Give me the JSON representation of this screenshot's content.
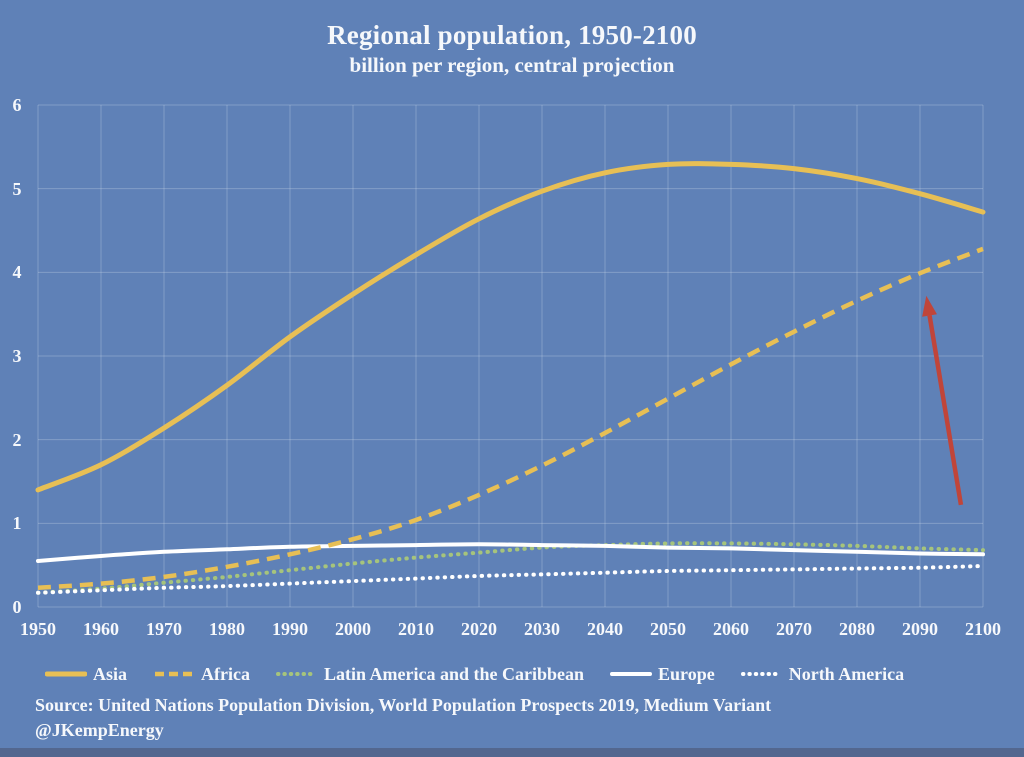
{
  "title": "Regional population, 1950-2100",
  "subtitle": "billion per region, central projection",
  "source": {
    "line1": "Source: United Nations Population Division, World Population Prospects 2019, Medium Variant",
    "line2": "@JKempEnergy"
  },
  "colors": {
    "background": "#5f81b7",
    "bottom_bar": "#53678f",
    "text": "#f6f8fb",
    "gold": "#e7bf55",
    "green": "#a6c47c",
    "white": "#ffffff",
    "arrow_red": "#c0453a",
    "grid": "#cdd9ea"
  },
  "chart_data": {
    "type": "line",
    "title": "Regional population, 1950-2100",
    "subtitle": "billion per region, central projection",
    "xlabel": "",
    "ylabel": "billion per region",
    "x": [
      1950,
      1960,
      1970,
      1980,
      1990,
      2000,
      2010,
      2020,
      2030,
      2040,
      2050,
      2060,
      2070,
      2080,
      2090,
      2100
    ],
    "x_ticks": [
      1950,
      1960,
      1970,
      1980,
      1990,
      2000,
      2010,
      2020,
      2030,
      2040,
      2050,
      2060,
      2070,
      2080,
      2090,
      2100
    ],
    "y_ticks": [
      0,
      1,
      2,
      3,
      4,
      5,
      6
    ],
    "ylim": [
      0,
      6
    ],
    "xlim": [
      1950,
      2100
    ],
    "grid": true,
    "legend_position": "bottom",
    "series": [
      {
        "name": "Asia",
        "style": "solid",
        "color_key": "gold",
        "values": [
          1.4,
          1.7,
          2.14,
          2.65,
          3.23,
          3.74,
          4.21,
          4.64,
          4.97,
          5.19,
          5.29,
          5.29,
          5.24,
          5.12,
          4.94,
          4.72
        ]
      },
      {
        "name": "Africa",
        "style": "dashed",
        "color_key": "gold",
        "values": [
          0.23,
          0.28,
          0.36,
          0.48,
          0.63,
          0.81,
          1.04,
          1.34,
          1.69,
          2.08,
          2.49,
          2.9,
          3.29,
          3.66,
          3.99,
          4.28
        ]
      },
      {
        "name": "Latin America and the Caribbean",
        "style": "dotted",
        "color_key": "green",
        "values": [
          0.17,
          0.22,
          0.29,
          0.36,
          0.44,
          0.52,
          0.59,
          0.65,
          0.71,
          0.74,
          0.76,
          0.76,
          0.75,
          0.73,
          0.7,
          0.68
        ]
      },
      {
        "name": "Europe",
        "style": "solid",
        "color_key": "white",
        "values": [
          0.55,
          0.61,
          0.66,
          0.69,
          0.72,
          0.73,
          0.74,
          0.75,
          0.74,
          0.73,
          0.71,
          0.7,
          0.68,
          0.66,
          0.64,
          0.63
        ]
      },
      {
        "name": "North America",
        "style": "dotted",
        "color_key": "white",
        "values": [
          0.17,
          0.2,
          0.23,
          0.25,
          0.28,
          0.31,
          0.34,
          0.37,
          0.39,
          0.41,
          0.43,
          0.44,
          0.45,
          0.46,
          0.47,
          0.49
        ]
      }
    ],
    "annotation_arrow": {
      "from_x": 2096.5,
      "from_y": 1.22,
      "to_x": 2091.0,
      "to_y": 3.72,
      "color_key": "arrow_red",
      "points_at": "Africa"
    }
  }
}
